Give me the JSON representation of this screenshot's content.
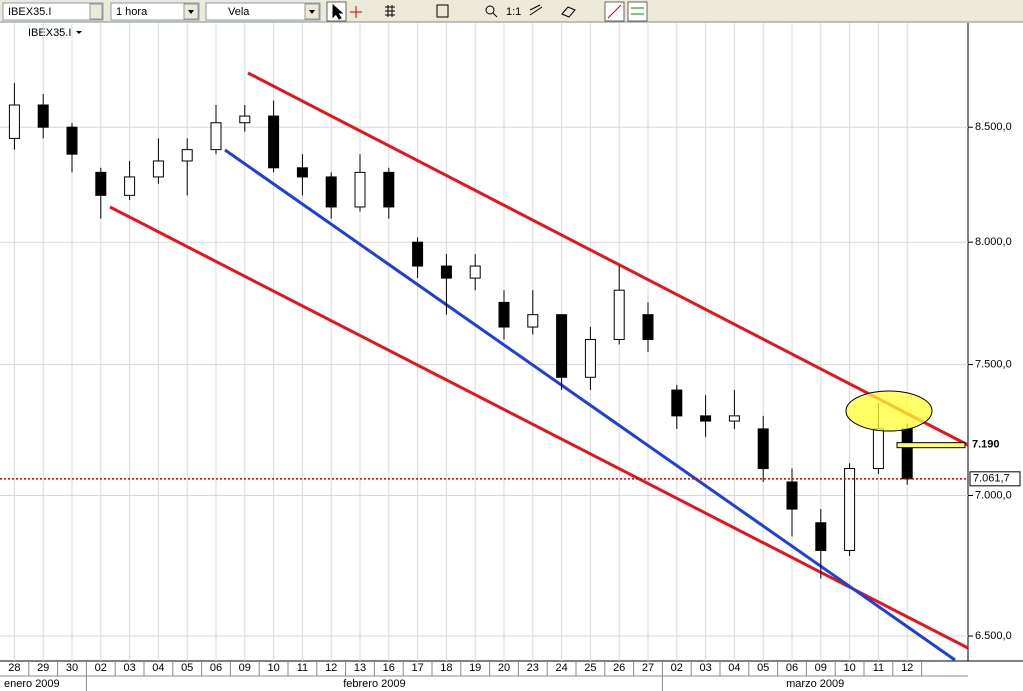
{
  "toolbar": {
    "symbol": "IBEX35.I",
    "interval": "1 hora",
    "chart_style": "Vela",
    "zoom": "1:1"
  },
  "chart_data": {
    "type": "candlestick",
    "title": "IBEX35.I",
    "categories": [
      "28",
      "29",
      "30",
      "02",
      "03",
      "04",
      "05",
      "06",
      "09",
      "10",
      "11",
      "12",
      "13",
      "16",
      "17",
      "18",
      "19",
      "20",
      "23",
      "24",
      "25",
      "26",
      "27",
      "02",
      "03",
      "04",
      "05",
      "06",
      "09",
      "10",
      "11",
      "12"
    ],
    "months": [
      "enero 2009",
      "febrero 2009",
      "marzo 2009"
    ],
    "open": [
      8450,
      8600,
      8500,
      8300,
      8200,
      8280,
      8350,
      8400,
      8520,
      8550,
      8320,
      8280,
      8150,
      8300,
      8000,
      7900,
      7850,
      7750,
      7650,
      7700,
      7450,
      7600,
      7700,
      7400,
      7300,
      7280,
      7250,
      7050,
      6900,
      6800,
      7100,
      7250
    ],
    "high": [
      8700,
      8650,
      8520,
      8320,
      8350,
      8450,
      8450,
      8600,
      8600,
      8620,
      8380,
      8300,
      8380,
      8320,
      8020,
      7950,
      7950,
      7800,
      7800,
      7700,
      7650,
      7900,
      7750,
      7420,
      7380,
      7400,
      7300,
      7100,
      6950,
      7120,
      7350,
      7270
    ],
    "low": [
      8400,
      8450,
      8300,
      8100,
      8180,
      8250,
      8200,
      8380,
      8480,
      8300,
      8200,
      8100,
      8130,
      8100,
      7850,
      7700,
      7800,
      7600,
      7620,
      7400,
      7400,
      7580,
      7550,
      7250,
      7220,
      7250,
      7050,
      6850,
      6700,
      6780,
      7080,
      7040
    ],
    "close": [
      8600,
      8500,
      8380,
      8200,
      8280,
      8350,
      8400,
      8520,
      8550,
      8320,
      8280,
      8150,
      8300,
      8150,
      7900,
      7850,
      7900,
      7650,
      7700,
      7450,
      7600,
      7800,
      7600,
      7300,
      7280,
      7300,
      7100,
      6950,
      6800,
      7100,
      7250,
      7062
    ],
    "ylim": [
      6415,
      8980
    ],
    "log_scale": true,
    "grid": true,
    "yticks": [
      {
        "value": 6500,
        "label": "6.500,0"
      },
      {
        "value": 7000,
        "label": "7.000,0"
      },
      {
        "value": 7500,
        "label": "7.500,0"
      },
      {
        "value": 8000,
        "label": "8.000,0"
      },
      {
        "value": 8500,
        "label": "8.500,0"
      }
    ],
    "last_price": {
      "value": 7061.7,
      "label": "7.061,7"
    },
    "annotation": {
      "value": 7190,
      "label": "7.190"
    },
    "channel_color": "#e8141c",
    "support_color": "#1e3fdc",
    "last_price_color": "#cc0000"
  }
}
